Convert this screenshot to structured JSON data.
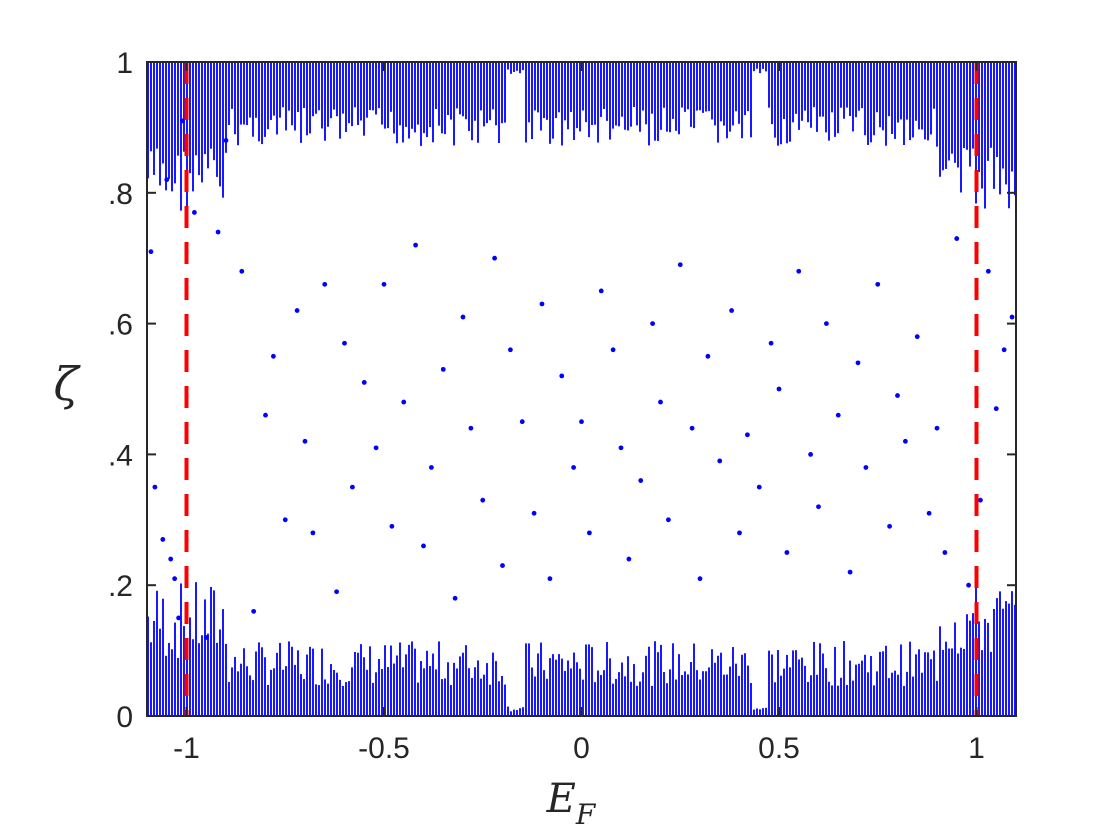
{
  "chart_data": {
    "type": "scatter",
    "title": "",
    "xlabel": "E",
    "xlabel_subscript": "F",
    "ylabel": "ζ",
    "xlim": [
      -1.1,
      1.1
    ],
    "ylim": [
      0,
      1
    ],
    "xticks": [
      -1,
      -0.5,
      0,
      0.5,
      1
    ],
    "xtick_labels": [
      "-1",
      "-0.5",
      "0",
      "0.5",
      "1"
    ],
    "yticks": [
      0,
      0.2,
      0.4,
      0.6,
      0.8,
      1
    ],
    "ytick_labels": [
      "0",
      ".2",
      ".4",
      ".6",
      ".8",
      "1"
    ],
    "grid": false,
    "legend": "none",
    "colors": {
      "points": "#0000ff",
      "reference_lines": "#ff0000",
      "axes": "#262626"
    },
    "reference_lines": [
      {
        "orientation": "vertical",
        "x": -1,
        "style": "dashed"
      },
      {
        "orientation": "vertical",
        "x": 1,
        "style": "dashed"
      }
    ],
    "series": [
      {
        "x": [
          -1.09,
          -1.08,
          -1.06,
          -1.05,
          -1.04,
          -1.03,
          -1.02,
          -1.01,
          -0.98,
          -0.95,
          -0.92,
          -0.9,
          -0.86,
          -0.83,
          -0.8,
          -0.78,
          -0.75,
          -0.72,
          -0.7,
          -0.68,
          -0.65,
          -0.62,
          -0.6,
          -0.58,
          -0.55,
          -0.52,
          -0.5,
          -0.48,
          -0.45,
          -0.42,
          -0.4,
          -0.38,
          -0.35,
          -0.32,
          -0.3,
          -0.28,
          -0.25,
          -0.22,
          -0.2,
          -0.18,
          -0.15,
          -0.12,
          -0.1,
          -0.08,
          -0.05,
          -0.02,
          0,
          0.02,
          0.05,
          0.08,
          0.1,
          0.12,
          0.15,
          0.18,
          0.2,
          0.22,
          0.25,
          0.28,
          0.3,
          0.32,
          0.35,
          0.38,
          0.4,
          0.42,
          0.45,
          0.48,
          0.5,
          0.52,
          0.55,
          0.58,
          0.6,
          0.62,
          0.65,
          0.68,
          0.7,
          0.72,
          0.75,
          0.78,
          0.8,
          0.82,
          0.85,
          0.88,
          0.9,
          0.92,
          0.95,
          0.98,
          1.01,
          1.03,
          1.05,
          1.07,
          1.09
        ],
        "y": [
          0.71,
          0.35,
          0.27,
          0.82,
          0.24,
          0.21,
          0.15,
          0.91,
          0.77,
          0.12,
          0.74,
          0.88,
          0.68,
          0.16,
          0.46,
          0.55,
          0.3,
          0.62,
          0.42,
          0.28,
          0.66,
          0.19,
          0.57,
          0.35,
          0.51,
          0.41,
          0.66,
          0.29,
          0.48,
          0.72,
          0.26,
          0.38,
          0.53,
          0.18,
          0.61,
          0.44,
          0.33,
          0.7,
          0.23,
          0.56,
          0.45,
          0.31,
          0.63,
          0.21,
          0.52,
          0.38,
          0.45,
          0.28,
          0.65,
          0.56,
          0.41,
          0.24,
          0.36,
          0.6,
          0.48,
          0.3,
          0.69,
          0.44,
          0.21,
          0.55,
          0.39,
          0.62,
          0.28,
          0.43,
          0.35,
          0.57,
          0.5,
          0.25,
          0.68,
          0.4,
          0.32,
          0.6,
          0.46,
          0.22,
          0.54,
          0.38,
          0.66,
          0.29,
          0.49,
          0.42,
          0.58,
          0.31,
          0.44,
          0.25,
          0.73,
          0.2,
          0.33,
          0.68,
          0.47,
          0.56,
          0.61
        ]
      }
    ]
  }
}
